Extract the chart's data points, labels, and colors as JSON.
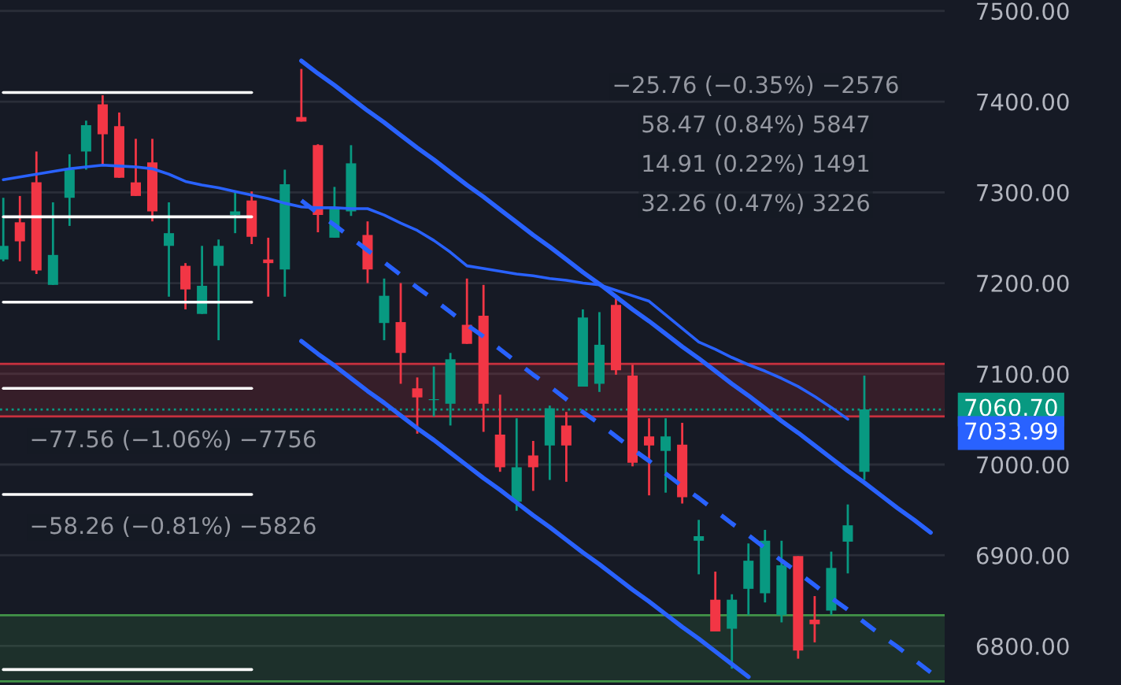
{
  "chart_data": {
    "type": "candlestick",
    "categories": [
      null,
      null,
      null,
      null,
      null,
      null,
      null,
      null,
      null,
      null,
      null,
      null,
      null,
      null,
      null,
      null,
      null,
      null,
      null,
      null,
      null,
      null,
      null,
      null,
      null,
      null,
      null,
      null,
      null,
      null,
      null,
      null,
      null,
      null,
      null,
      null,
      null,
      null,
      null,
      null,
      null,
      null,
      null,
      null,
      null,
      null,
      null,
      null,
      null,
      null,
      null,
      null,
      null,
      null,
      null,
      null,
      null
    ],
    "ohlc": [
      [
        7226,
        7294,
        7224,
        7241
      ],
      [
        7267,
        7296,
        7224,
        7246
      ],
      [
        7311,
        7345,
        7210,
        7214
      ],
      [
        7198,
        7289,
        7198,
        7231
      ],
      [
        7294,
        7342,
        7263,
        7325
      ],
      [
        7345,
        7379,
        7325,
        7374
      ],
      [
        7397,
        7407,
        7330,
        7364
      ],
      [
        7373,
        7388,
        7316,
        7316
      ],
      [
        7311,
        7359,
        7296,
        7296
      ],
      [
        7333,
        7359,
        7268,
        7279
      ],
      [
        7241,
        7289,
        7185,
        7255
      ],
      [
        7219,
        7222,
        7171,
        7193
      ],
      [
        7166,
        7241,
        7166,
        7197
      ],
      [
        7219,
        7248,
        7137,
        7241
      ],
      [
        7275,
        7301,
        7255,
        7279
      ],
      [
        7291,
        7301,
        7243,
        7251
      ],
      [
        7226,
        7250,
        7185,
        7222
      ],
      [
        7215,
        7325,
        7185,
        7309
      ],
      [
        7383,
        7436,
        7378,
        7378
      ],
      [
        7352,
        7353,
        7256,
        7275
      ],
      [
        7250,
        7306,
        7250,
        7282
      ],
      [
        7279,
        7352,
        7274,
        7332
      ],
      [
        7253,
        7268,
        7200,
        7215
      ],
      [
        7156,
        7205,
        7137,
        7186
      ],
      [
        7157,
        7200,
        7089,
        7123
      ],
      [
        7084,
        7096,
        7034,
        7074
      ],
      [
        7071,
        7108,
        7053,
        7072
      ],
      [
        7067,
        7123,
        7043,
        7116
      ],
      [
        7154,
        7205,
        7133,
        7133
      ],
      [
        7164,
        7198,
        7036,
        7067
      ],
      [
        7033,
        7077,
        6992,
        6997
      ],
      [
        6959,
        7051,
        6949,
        6997
      ],
      [
        7010,
        7026,
        6971,
        6997
      ],
      [
        7021,
        7065,
        6983,
        7062
      ],
      [
        7043,
        7058,
        6981,
        7021
      ],
      [
        7086,
        7171,
        7086,
        7162
      ],
      [
        7089,
        7168,
        7080,
        7132
      ],
      [
        7176,
        7185,
        7099,
        7104
      ],
      [
        7098,
        7110,
        6998,
        7002
      ],
      [
        7031,
        7051,
        6966,
        7021
      ],
      [
        7015,
        7051,
        6969,
        7031
      ],
      [
        7022,
        7046,
        6957,
        6964
      ],
      [
        6916,
        6939,
        6879,
        6921
      ],
      [
        6851,
        6882,
        6816,
        6816
      ],
      [
        6819,
        6857,
        6775,
        6851
      ],
      [
        6863,
        6913,
        6834,
        6894
      ],
      [
        6858,
        6928,
        6848,
        6916
      ],
      [
        6834,
        6916,
        6826,
        6889
      ],
      [
        6899,
        6899,
        6786,
        6795
      ],
      [
        6829,
        6855,
        6804,
        6824
      ],
      [
        6839,
        6904,
        6834,
        6886
      ],
      [
        6915,
        6956,
        6880,
        6933
      ],
      [
        6992,
        7098,
        6983,
        7060.7
      ],
      null,
      null,
      null,
      null
    ],
    "colors": [
      "#089981",
      "#f23645",
      "#f23645",
      "#089981",
      "#089981",
      "#089981",
      "#f23645",
      "#f23645",
      "#f23645",
      "#f23645",
      "#089981",
      "#f23645",
      "#089981",
      "#089981",
      "#089981",
      "#f23645",
      "#f23645",
      "#089981",
      "#f23645",
      "#f23645",
      "#089981",
      "#089981",
      "#f23645",
      "#089981",
      "#f23645",
      "#f23645",
      "#089981",
      "#089981",
      "#f23645",
      "#f23645",
      "#f23645",
      "#089981",
      "#f23645",
      "#089981",
      "#f23645",
      "#089981",
      "#089981",
      "#f23645",
      "#f23645",
      "#f23645",
      "#089981",
      "#f23645",
      "#089981",
      "#f23645",
      "#089981",
      "#089981",
      "#089981",
      "#089981",
      "#f23645",
      "#f23645",
      "#089981",
      "#089981",
      "#089981",
      null,
      null,
      null,
      null
    ],
    "series": [
      {
        "type": "line",
        "color": "#2962ff",
        "values": [
          7314,
          7317,
          7320,
          7323,
          7326,
          7328,
          7330,
          7329,
          7328,
          7326,
          7320,
          7312,
          7308,
          7305,
          7301,
          7297,
          7293,
          7288,
          7284,
          7283,
          7283,
          7282,
          7282,
          7275,
          7266,
          7258,
          7247,
          7234,
          7219,
          7216,
          7213,
          7210,
          7208,
          7205,
          7203,
          7200,
          7198,
          7192,
          7186,
          7180,
          7165,
          7150,
          7135,
          7127,
          7118,
          7110,
          7103,
          7095,
          7086,
          7075,
          7063,
          7050,
          null,
          null,
          null,
          null,
          null
        ]
      },
      {
        "type": "line",
        "color": "#2962ff",
        "values": [
          null,
          null,
          null,
          null,
          null,
          null,
          null,
          null,
          null,
          null,
          null,
          null,
          null,
          null,
          null,
          null,
          null,
          null,
          7445,
          7431,
          7418,
          7404,
          7390,
          7377,
          7363,
          7349,
          7336,
          7322,
          7308,
          7295,
          7281,
          7267,
          7253,
          7240,
          7226,
          7212,
          7199,
          7185,
          7171,
          7158,
          7144,
          7130,
          7117,
          7103,
          7089,
          7076,
          7062,
          7048,
          7035,
          7021,
          7007,
          6993,
          6980,
          6966,
          6952,
          6939,
          6925
        ]
      },
      {
        "type": "line",
        "color": "#2962ff",
        "values": [
          null,
          null,
          null,
          null,
          null,
          null,
          null,
          null,
          null,
          null,
          null,
          null,
          null,
          null,
          null,
          null,
          null,
          null,
          7136,
          7122,
          7109,
          7095,
          7081,
          7068,
          7054,
          7040,
          7027,
          7013,
          6999,
          6985,
          6972,
          6958,
          6944,
          6931,
          6917,
          6903,
          6890,
          6876,
          6862,
          6849,
          6835,
          6821,
          6808,
          6794,
          6780,
          6766,
          null,
          null,
          null,
          null,
          null,
          null,
          null,
          null,
          null,
          null,
          null
        ]
      },
      {
        "type": "line",
        "color": "#2962ff",
        "line_style": "dashed",
        "values": [
          null,
          null,
          null,
          null,
          null,
          null,
          null,
          null,
          null,
          null,
          null,
          null,
          null,
          null,
          null,
          null,
          null,
          null,
          7291,
          7277,
          7264,
          7250,
          7236,
          7223,
          7209,
          7195,
          7182,
          7168,
          7154,
          7141,
          7127,
          7113,
          7099,
          7086,
          7072,
          7058,
          7045,
          7031,
          7017,
          7004,
          6990,
          6976,
          6963,
          6949,
          6935,
          6922,
          6908,
          6894,
          6881,
          6867,
          6853,
          6840,
          6826,
          6812,
          6799,
          6785,
          6771
        ]
      },
      {
        "type": "line",
        "color": "#ffffff",
        "values": [
          7410,
          7410,
          7410,
          7410,
          7410,
          7410,
          7410,
          7410,
          7410,
          7410,
          7410,
          7410,
          7410,
          7410,
          7410,
          7410,
          null,
          null,
          null,
          null,
          null,
          null,
          null,
          null,
          null,
          null,
          null,
          null,
          null,
          null,
          null,
          null,
          null,
          null,
          null,
          null,
          null,
          null,
          null,
          null,
          null,
          null,
          null,
          null,
          null,
          null,
          null,
          null,
          null,
          null,
          null,
          null,
          null,
          null,
          null,
          null,
          null
        ]
      },
      {
        "type": "line",
        "color": "#ffffff",
        "values": [
          7273,
          7273,
          7273,
          7273,
          7273,
          7273,
          7273,
          7273,
          7273,
          7273,
          7273,
          7273,
          7273,
          7273,
          7273,
          7273,
          null,
          null,
          null,
          null,
          null,
          null,
          null,
          null,
          null,
          null,
          null,
          null,
          null,
          null,
          null,
          null,
          null,
          null,
          null,
          null,
          null,
          null,
          null,
          null,
          null,
          null,
          null,
          null,
          null,
          null,
          null,
          null,
          null,
          null,
          null,
          null,
          null,
          null,
          null,
          null,
          null
        ]
      },
      {
        "type": "line",
        "color": "#ffffff",
        "values": [
          7179,
          7179,
          7179,
          7179,
          7179,
          7179,
          7179,
          7179,
          7179,
          7179,
          7179,
          7179,
          7179,
          7179,
          7179,
          7179,
          null,
          null,
          null,
          null,
          null,
          null,
          null,
          null,
          null,
          null,
          null,
          null,
          null,
          null,
          null,
          null,
          null,
          null,
          null,
          null,
          null,
          null,
          null,
          null,
          null,
          null,
          null,
          null,
          null,
          null,
          null,
          null,
          null,
          null,
          null,
          null,
          null,
          null,
          null,
          null,
          null
        ]
      },
      {
        "type": "line",
        "color": "#ffffff",
        "values": [
          7084,
          7084,
          7084,
          7084,
          7084,
          7084,
          7084,
          7084,
          7084,
          7084,
          7084,
          7084,
          7084,
          7084,
          7084,
          7084,
          null,
          null,
          null,
          null,
          null,
          null,
          null,
          null,
          null,
          null,
          null,
          null,
          null,
          null,
          null,
          null,
          null,
          null,
          null,
          null,
          null,
          null,
          null,
          null,
          null,
          null,
          null,
          null,
          null,
          null,
          null,
          null,
          null,
          null,
          null,
          null,
          null,
          null,
          null,
          null,
          null
        ]
      },
      {
        "type": "line",
        "color": "#ffffff",
        "values": [
          6967,
          6967,
          6967,
          6967,
          6967,
          6967,
          6967,
          6967,
          6967,
          6967,
          6967,
          6967,
          6967,
          6967,
          6967,
          6967,
          null,
          null,
          null,
          null,
          null,
          null,
          null,
          null,
          null,
          null,
          null,
          null,
          null,
          null,
          null,
          null,
          null,
          null,
          null,
          null,
          null,
          null,
          null,
          null,
          null,
          null,
          null,
          null,
          null,
          null,
          null,
          null,
          null,
          null,
          null,
          null,
          null,
          null,
          null,
          null,
          null
        ]
      },
      {
        "type": "line",
        "color": "#ffffff",
        "values": [
          6774,
          6774,
          6774,
          6774,
          6774,
          6774,
          6774,
          6774,
          6774,
          6774,
          6774,
          6774,
          6774,
          6774,
          6774,
          6774,
          null,
          null,
          null,
          null,
          null,
          null,
          null,
          null,
          null,
          null,
          null,
          null,
          null,
          null,
          null,
          null,
          null,
          null,
          null,
          null,
          null,
          null,
          null,
          null,
          null,
          null,
          null,
          null,
          null,
          null,
          null,
          null,
          null,
          null,
          null,
          null,
          null,
          null,
          null,
          null,
          null
        ]
      }
    ],
    "ylim": [
      6757,
      7512
    ],
    "yticks": [
      {
        "value": 6800,
        "label": "6800.00"
      },
      {
        "value": 6900,
        "label": "6900.00"
      },
      {
        "value": 7000,
        "label": "7000.00"
      },
      {
        "value": 7100,
        "label": "7100.00"
      },
      {
        "value": 7200,
        "label": "7200.00"
      },
      {
        "value": 7300,
        "label": "7300.00"
      },
      {
        "value": 7400,
        "label": "7400.00"
      },
      {
        "value": 7500,
        "label": "7500.00"
      }
    ],
    "tick_labels": "y",
    "grid": "y",
    "legend": false,
    "bands": [
      {
        "axis": "y",
        "from": 7053,
        "to": 7111,
        "color": "#f23645"
      },
      {
        "axis": "y",
        "from": 6761,
        "to": 6834,
        "color": "#4caf50"
      }
    ],
    "ref_lines": [
      {
        "axis": "y",
        "value": 7060.7,
        "label": "7060.70",
        "color": "#089981",
        "line_style": "dotted"
      },
      {
        "axis": "y",
        "value": 7111,
        "color": "#f23645",
        "line_style": "solid"
      },
      {
        "axis": "y",
        "value": 7053,
        "color": "#f23645",
        "line_style": "solid"
      },
      {
        "axis": "y",
        "value": 6834,
        "color": "#4caf50",
        "line_style": "solid"
      },
      {
        "axis": "y",
        "value": 6761,
        "color": "#4caf50",
        "line_style": "solid"
      }
    ],
    "annotations": [
      "7033.99",
      "−25.76 (−0.35%) −2576",
      "−77.56 (−1.06%) −7756",
      "−58.26 (−0.81%) −5826",
      "58.47 (0.84%) 5847",
      "14.91 (0.22%) 1491",
      "32.26 (0.47%) 3226"
    ]
  }
}
